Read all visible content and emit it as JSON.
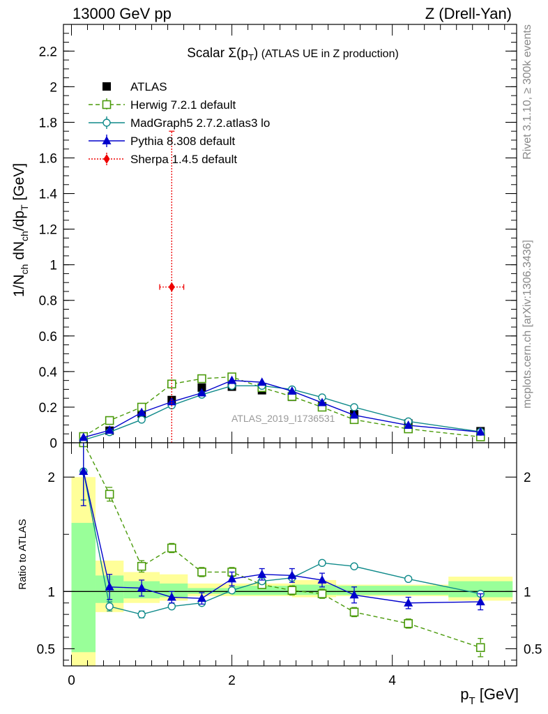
{
  "header": {
    "left": "13000 GeV pp",
    "right": "Z (Drell-Yan)"
  },
  "side_labels": {
    "rivet": "Rivet 3.1.10, ≥ 300k events",
    "mcplots": "mcplots.cern.ch [arXiv:1306.3436]"
  },
  "watermark": "ATLAS_2019_I1736531",
  "colors": {
    "atlas": "#000000",
    "herwig": "#4a9a0a",
    "madgraph": "#0f8a8a",
    "pythia": "#0000cc",
    "sherpa": "#ee0000",
    "band_yellow": "#ffff99",
    "band_green": "#99ff99"
  },
  "chart_data": [
    {
      "type": "line",
      "panel": "main",
      "title": "Scalar Σ(pT) (ATLAS UE in Z production)",
      "title_parts": {
        "lead": "Scalar ",
        "sigma": "Σ(p",
        "sub": "T",
        "close": ")",
        "tail": " (ATLAS UE in Z production)"
      },
      "ylabel_parts": {
        "a": "1/N",
        "s1": "ch",
        "b": " dN",
        "s2": "ch",
        "c": "/dp",
        "s3": "T",
        "d": " [GeV]"
      },
      "ylim": [
        0,
        2.35
      ],
      "xlim": [
        -0.1,
        5.55
      ],
      "yticks": [
        0,
        0.2,
        0.4,
        0.6,
        0.8,
        1,
        1.2,
        1.4,
        1.6,
        1.8,
        2,
        2.2
      ],
      "ytick_labels": [
        "0",
        "0.2",
        "0.4",
        "0.6",
        "0.8",
        "1",
        "1.2",
        "1.4",
        "1.6",
        "1.8",
        "2",
        "2.2"
      ],
      "x": [
        0.15,
        0.475,
        0.875,
        1.25,
        1.625,
        2.0,
        2.375,
        2.75,
        3.125,
        3.525,
        4.2,
        5.1
      ],
      "series": [
        {
          "name": "ATLAS",
          "key": "atlas",
          "style": "data",
          "values": [
            0.015,
            0.068,
            0.165,
            0.24,
            0.31,
            0.315,
            0.295,
            0.258,
            0.205,
            0.16,
            0.108,
            0.065
          ]
        },
        {
          "name": "Herwig 7.2.1 default",
          "key": "herwig",
          "style": "dashed",
          "marker": "open-square",
          "values": [
            0.035,
            0.125,
            0.2,
            0.33,
            0.36,
            0.37,
            0.31,
            0.26,
            0.2,
            0.13,
            0.078,
            0.033
          ]
        },
        {
          "name": "MadGraph5 2.7.2.atlas3 lo",
          "key": "madgraph",
          "style": "solid",
          "marker": "open-circle",
          "values": [
            0.015,
            0.06,
            0.13,
            0.21,
            0.27,
            0.32,
            0.32,
            0.3,
            0.255,
            0.2,
            0.12,
            0.062
          ]
        },
        {
          "name": "Pythia 8.308 default",
          "key": "pythia",
          "style": "solid",
          "marker": "filled-triangle",
          "values": [
            0.03,
            0.07,
            0.17,
            0.23,
            0.28,
            0.35,
            0.34,
            0.29,
            0.225,
            0.155,
            0.098,
            0.06
          ]
        },
        {
          "name": "Sherpa 1.4.5 default",
          "key": "sherpa",
          "style": "dotted",
          "marker": "filled-diamond",
          "x": [
            1.25
          ],
          "values": [
            0.875
          ],
          "xerr": [
            1.1,
            1.4
          ],
          "yerr": [
            0,
            1.75
          ]
        }
      ],
      "legend_position": "top-left"
    },
    {
      "type": "line",
      "panel": "ratio",
      "ylabel": "Ratio to ATLAS",
      "xlabel_parts": {
        "a": "p",
        "sub": "T",
        "b": " [GeV]"
      },
      "ylim": [
        0.35,
        2.3
      ],
      "xlim": [
        -0.1,
        5.55
      ],
      "yticks": [
        0.5,
        1,
        2
      ],
      "ytick_labels": [
        "0.5",
        "1",
        "2"
      ],
      "xticks": [
        0,
        2,
        4
      ],
      "xtick_labels": [
        "0",
        "2",
        "4"
      ],
      "x": [
        0.15,
        0.475,
        0.875,
        1.25,
        1.625,
        2.0,
        2.375,
        2.75,
        3.125,
        3.525,
        4.2,
        5.1
      ],
      "band_bins": [
        0,
        0.3,
        0.65,
        1.1,
        1.45,
        2.0,
        2.75,
        3.3,
        4.7,
        5.5
      ],
      "band_yellow": [
        [
          0.35,
          2.0
        ],
        [
          0.82,
          1.27
        ],
        [
          0.9,
          1.17
        ],
        [
          0.92,
          1.15
        ],
        [
          0.96,
          1.07
        ],
        [
          0.96,
          1.07
        ],
        [
          0.95,
          1.1
        ],
        [
          0.96,
          1.06
        ],
        [
          0.92,
          1.13
        ]
      ],
      "band_green": [
        [
          0.47,
          1.6
        ],
        [
          0.9,
          1.14
        ],
        [
          0.94,
          1.09
        ],
        [
          0.95,
          1.07
        ],
        [
          0.98,
          1.03
        ],
        [
          0.97,
          1.05
        ],
        [
          0.97,
          1.06
        ],
        [
          0.97,
          1.05
        ],
        [
          0.95,
          1.09
        ]
      ],
      "series": [
        {
          "name": "Herwig 7.2.1 default",
          "key": "herwig",
          "values": [
            2.3,
            1.85,
            1.22,
            1.38,
            1.17,
            1.17,
            1.06,
            1.01,
            0.98,
            0.82,
            0.72,
            0.51
          ],
          "errors": [
            0,
            0.06,
            0.05,
            0.04,
            0.04,
            0.04,
            0.03,
            0.04,
            0.04,
            0.04,
            0.04,
            0.08
          ]
        },
        {
          "name": "MadGraph5 2.7.2.atlas3 lo",
          "key": "madgraph",
          "values": [
            2.05,
            0.87,
            0.8,
            0.87,
            0.9,
            1.01,
            1.09,
            1.12,
            1.25,
            1.22,
            1.11,
            0.98
          ],
          "errors": [
            0.25,
            0.04,
            0.03,
            0.02,
            0.02,
            0.02,
            0.02,
            0.02,
            0.02,
            0.02,
            0.02,
            0.02
          ]
        },
        {
          "name": "Pythia 8.308 default",
          "key": "pythia",
          "values": [
            2.05,
            1.04,
            1.03,
            0.95,
            0.94,
            1.11,
            1.15,
            1.14,
            1.1,
            0.97,
            0.9,
            0.91
          ],
          "errors": [
            0.3,
            0.11,
            0.07,
            0.05,
            0.05,
            0.06,
            0.05,
            0.06,
            0.06,
            0.07,
            0.05,
            0.07
          ]
        }
      ]
    }
  ]
}
